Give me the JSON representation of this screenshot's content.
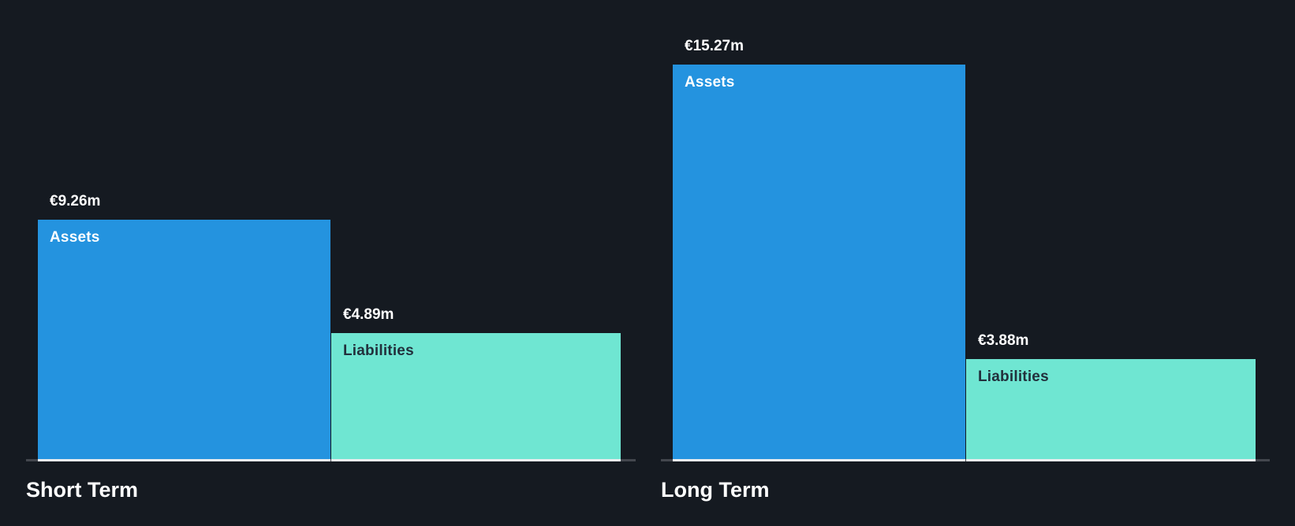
{
  "page": {
    "background_color": "#151a21"
  },
  "colors": {
    "assets_bar": "#2493df",
    "liabilities_bar": "#6fe6d2",
    "assets_label_text": "#ffffff",
    "liabilities_label_text": "#22303c",
    "value_label_text": "#ffffff",
    "axis_line": "#43474e",
    "axis_line_under_bar": "#eef2f4",
    "title_text": "#ffffff"
  },
  "chart_data": {
    "type": "bar",
    "title": "",
    "categories": [
      "Short Term",
      "Long Term"
    ],
    "series": [
      {
        "name": "Assets",
        "color": "#2493df",
        "label_color": "#ffffff",
        "values": [
          9.26,
          15.27
        ],
        "value_labels": [
          "€9.26m",
          "€15.27m"
        ]
      },
      {
        "name": "Liabilities",
        "color": "#6fe6d2",
        "label_color": "#22303c",
        "values": [
          4.89,
          3.88
        ],
        "value_labels": [
          "€4.89m",
          "€3.88m"
        ]
      }
    ],
    "unit": "€m",
    "ylim": [
      0,
      15.27
    ],
    "grid": false,
    "legend": "none",
    "value_label_position": "above-bar",
    "series_label_position": "inside-bar-top-left"
  }
}
